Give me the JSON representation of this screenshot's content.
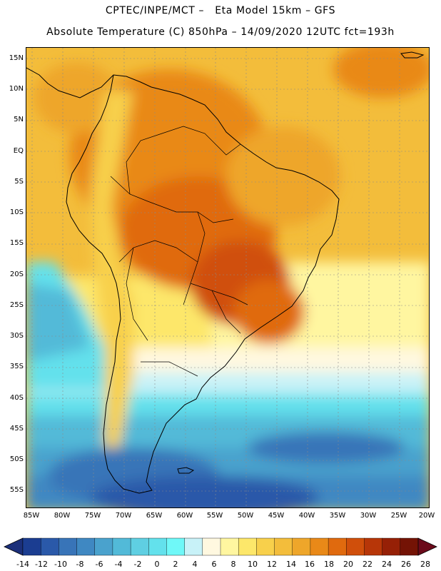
{
  "header": {
    "line1": "CPTEC/INPE/MCT –   Eta Model 15km – GFS",
    "line2": "Absolute Temperature (C) 850hPa – 14/09/2020 12UTC fct=193h"
  },
  "map": {
    "lat_labels": [
      "15N",
      "10N",
      "5N",
      "EQ",
      "5S",
      "10S",
      "15S",
      "20S",
      "25S",
      "30S",
      "35S",
      "40S",
      "45S",
      "50S",
      "55S"
    ],
    "lon_labels": [
      "85W",
      "80W",
      "75W",
      "70W",
      "65W",
      "60W",
      "55W",
      "50W",
      "45W",
      "40W",
      "35W",
      "30W",
      "25W",
      "20W"
    ]
  },
  "colorbar": {
    "labels": [
      "-14",
      "-12",
      "-10",
      "-8",
      "-6",
      "-4",
      "-2",
      "0",
      "2",
      "4",
      "6",
      "8",
      "10",
      "12",
      "14",
      "16",
      "18",
      "20",
      "22",
      "24",
      "26",
      "28"
    ],
    "colors": [
      "#1b3d91",
      "#2a59a9",
      "#3874b8",
      "#3f88c2",
      "#4aa2cd",
      "#52bad8",
      "#5fcfe2",
      "#63e1ec",
      "#6ff8f8",
      "#c8f2f8",
      "#fff8e0",
      "#fff6a0",
      "#fde76a",
      "#f8d04b",
      "#f3bd3b",
      "#eea62a",
      "#e98918",
      "#e06a0e",
      "#d04f0b",
      "#b73608",
      "#962006",
      "#741305"
    ],
    "under_color": "#1b2f7a",
    "over_color": "#6b0a1a"
  }
}
